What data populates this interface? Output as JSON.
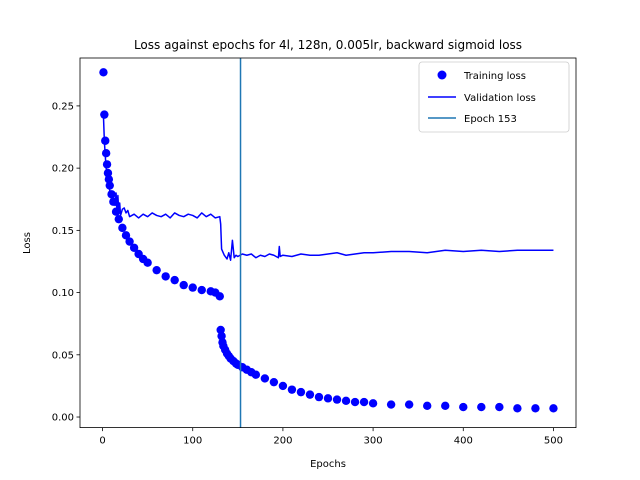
{
  "chart_data": {
    "type": "line",
    "title": "Loss against epochs for 4l, 128n, 0.005lr, backward sigmoid loss",
    "xlabel": "Epochs",
    "ylabel": "Loss",
    "xlim": [
      -25,
      525
    ],
    "ylim": [
      -0.0085,
      0.2885
    ],
    "xticks": [
      0,
      100,
      200,
      300,
      400,
      500
    ],
    "yticks": [
      0.0,
      0.05,
      0.1,
      0.15,
      0.2,
      0.25
    ],
    "ytick_labels": [
      "0.00",
      "0.05",
      "0.10",
      "0.15",
      "0.20",
      "0.25"
    ],
    "grid": false,
    "legend_position": "top-right",
    "colors": {
      "training": "#0000ff",
      "validation": "#0000ff",
      "epoch_line": "#1f77b4"
    },
    "series": [
      {
        "name": "Training loss",
        "style": "markers",
        "x": [
          1,
          2,
          3,
          4,
          5,
          6,
          7,
          8,
          10,
          12,
          15,
          18,
          22,
          26,
          30,
          35,
          40,
          45,
          50,
          60,
          70,
          80,
          90,
          100,
          110,
          120,
          125,
          130,
          131,
          132,
          133,
          134,
          136,
          138,
          140,
          142,
          145,
          148,
          150,
          155,
          160,
          165,
          170,
          180,
          190,
          200,
          210,
          220,
          230,
          240,
          250,
          260,
          270,
          280,
          290,
          300,
          320,
          340,
          360,
          380,
          400,
          420,
          440,
          460,
          480,
          500
        ],
        "y": [
          0.277,
          0.243,
          0.222,
          0.212,
          0.203,
          0.196,
          0.191,
          0.186,
          0.179,
          0.173,
          0.165,
          0.159,
          0.152,
          0.146,
          0.141,
          0.136,
          0.131,
          0.127,
          0.124,
          0.118,
          0.113,
          0.11,
          0.106,
          0.104,
          0.102,
          0.101,
          0.1,
          0.097,
          0.07,
          0.065,
          0.06,
          0.057,
          0.054,
          0.051,
          0.049,
          0.047,
          0.045,
          0.043,
          0.042,
          0.04,
          0.038,
          0.036,
          0.034,
          0.031,
          0.028,
          0.025,
          0.022,
          0.02,
          0.018,
          0.016,
          0.015,
          0.014,
          0.013,
          0.012,
          0.012,
          0.011,
          0.01,
          0.01,
          0.009,
          0.009,
          0.008,
          0.008,
          0.008,
          0.007,
          0.007,
          0.007
        ]
      },
      {
        "name": "Validation loss",
        "style": "line",
        "x": [
          1,
          2,
          3,
          4,
          5,
          6,
          7,
          8,
          10,
          12,
          14,
          15,
          16,
          17,
          18,
          19,
          20,
          22,
          24,
          26,
          28,
          30,
          35,
          40,
          45,
          50,
          55,
          60,
          65,
          70,
          75,
          80,
          85,
          90,
          95,
          100,
          105,
          110,
          115,
          120,
          125,
          130,
          131,
          132,
          135,
          138,
          140,
          142,
          144,
          146,
          148,
          150,
          155,
          160,
          165,
          170,
          175,
          180,
          185,
          190,
          195,
          196,
          197,
          200,
          210,
          220,
          230,
          240,
          250,
          260,
          270,
          280,
          290,
          300,
          320,
          340,
          360,
          380,
          400,
          420,
          440,
          460,
          480,
          500
        ],
        "y": [
          0.242,
          0.222,
          0.21,
          0.2,
          0.194,
          0.19,
          0.186,
          0.182,
          0.178,
          0.174,
          0.17,
          0.18,
          0.166,
          0.178,
          0.165,
          0.172,
          0.162,
          0.167,
          0.168,
          0.164,
          0.166,
          0.161,
          0.163,
          0.16,
          0.163,
          0.161,
          0.164,
          0.162,
          0.161,
          0.163,
          0.16,
          0.164,
          0.162,
          0.161,
          0.163,
          0.162,
          0.16,
          0.164,
          0.161,
          0.163,
          0.16,
          0.161,
          0.155,
          0.135,
          0.13,
          0.127,
          0.132,
          0.126,
          0.142,
          0.128,
          0.13,
          0.129,
          0.131,
          0.13,
          0.131,
          0.128,
          0.13,
          0.129,
          0.131,
          0.13,
          0.128,
          0.137,
          0.129,
          0.13,
          0.129,
          0.131,
          0.13,
          0.13,
          0.131,
          0.132,
          0.13,
          0.131,
          0.132,
          0.132,
          0.133,
          0.133,
          0.132,
          0.134,
          0.133,
          0.134,
          0.133,
          0.134,
          0.134,
          0.134
        ]
      }
    ],
    "vlines": [
      {
        "name": "Epoch 153",
        "x": 153
      }
    ]
  }
}
